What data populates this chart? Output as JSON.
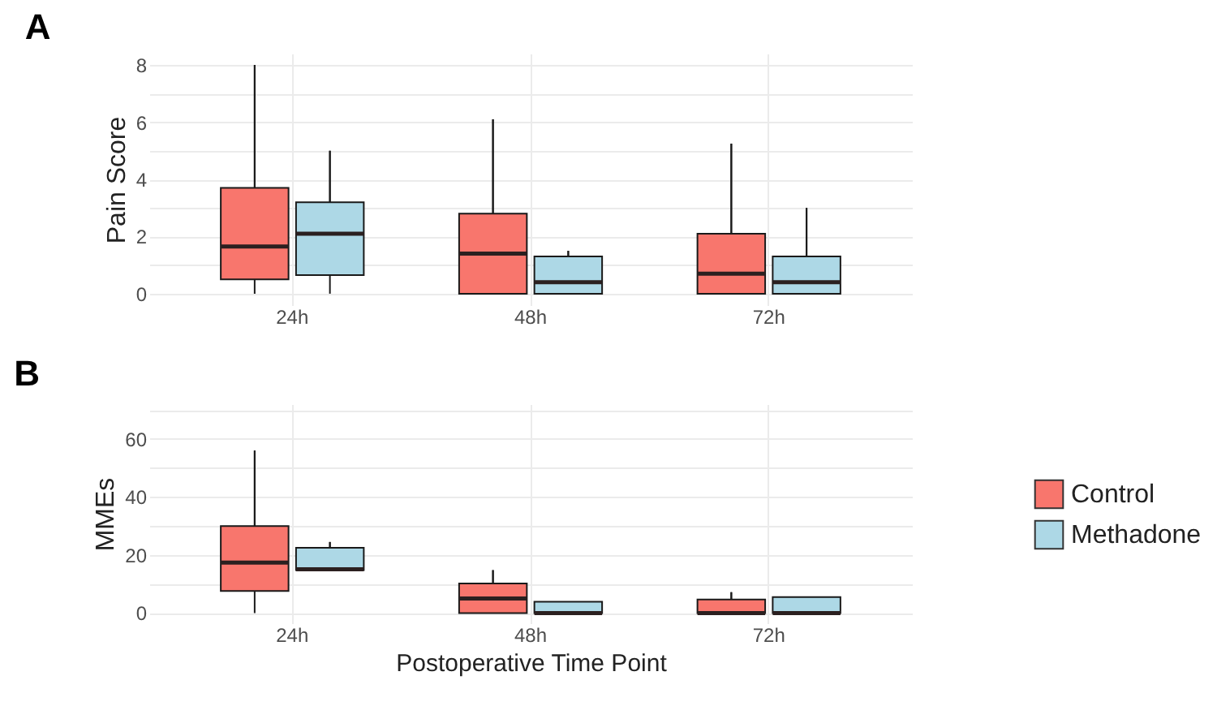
{
  "chart_data": [
    {
      "type": "box",
      "title": "A",
      "ylabel": "Pain Score",
      "categories": [
        "24h",
        "48h",
        "72h"
      ],
      "ylim": [
        -0.4,
        8.4
      ],
      "yticks": [
        0,
        {
          "value": 1,
          "label": null
        },
        2,
        {
          "value": 3,
          "label": null
        },
        4,
        {
          "value": 5,
          "label": null
        },
        6,
        {
          "value": 7,
          "label": null
        },
        8
      ],
      "grid": true,
      "legend": "right",
      "series": [
        {
          "name": "Control",
          "color": "#f8766d",
          "boxes": [
            {
              "low": 0,
              "q1": 0.5,
              "median": 1.65,
              "q3": 3.7,
              "high": 8
            },
            {
              "low": 0,
              "q1": 0,
              "median": 1.4,
              "q3": 2.8,
              "high": 6.1
            },
            {
              "low": 0,
              "q1": 0,
              "median": 0.7,
              "q3": 2.1,
              "high": 5.25
            }
          ]
        },
        {
          "name": "Methadone",
          "color": "#add8e6",
          "boxes": [
            {
              "low": 0,
              "q1": 0.65,
              "median": 2.1,
              "q3": 3.2,
              "high": 5
            },
            {
              "low": 0,
              "q1": 0,
              "median": 0.4,
              "q3": 1.3,
              "high": 1.5
            },
            {
              "low": 0,
              "q1": 0,
              "median": 0.4,
              "q3": 1.3,
              "high": 3
            }
          ]
        }
      ]
    },
    {
      "type": "box",
      "title": "B",
      "ylabel": "MMEs",
      "xlabel": "Postoperative Time Point",
      "categories": [
        "24h",
        "48h",
        "72h"
      ],
      "ylim": [
        -3.5,
        72
      ],
      "yticks": [
        0,
        {
          "value": 10,
          "label": null
        },
        20,
        {
          "value": 30,
          "label": null
        },
        40,
        {
          "value": 50,
          "label": null
        },
        60,
        {
          "value": 70,
          "label": null
        }
      ],
      "grid": true,
      "legend": "right",
      "series": [
        {
          "name": "Control",
          "color": "#f8766d",
          "boxes": [
            {
              "low": 0,
              "q1": 7.6,
              "median": 17.4,
              "q3": 30,
              "high": 56
            },
            {
              "low": 0,
              "q1": 0,
              "median": 5,
              "q3": 10.2,
              "high": 14.8
            },
            {
              "low": 0,
              "q1": 0,
              "median": 0,
              "q3": 4.7,
              "high": 7.2
            }
          ]
        },
        {
          "name": "Methadone",
          "color": "#add8e6",
          "boxes": [
            {
              "low": 14.8,
              "q1": 14.8,
              "median": 15.1,
              "q3": 22.5,
              "high": 24.5
            },
            {
              "low": 0,
              "q1": 0,
              "median": 0,
              "q3": 3.9,
              "high": 3.9
            },
            {
              "low": 0,
              "q1": 0,
              "median": 0,
              "q3": 5.5,
              "high": 5.5
            }
          ]
        }
      ]
    }
  ]
}
